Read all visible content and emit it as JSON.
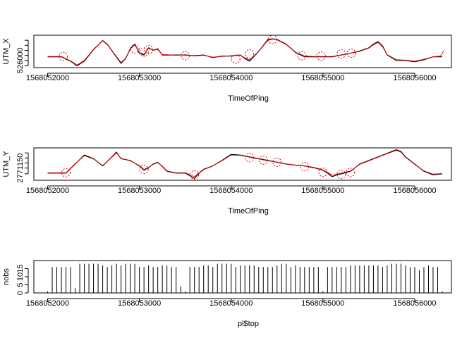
{
  "page": {
    "background": "#ffffff"
  },
  "chart_data": [
    {
      "type": "line",
      "title": "",
      "xlabel": "TimeOfPing",
      "ylabel": "UTM_X",
      "xlim": [
        1568051850,
        1568056400
      ],
      "ylim": [
        1.0,
        10.0
      ],
      "xticks": [
        1568052000,
        1568053000,
        1568054000,
        1568055000,
        1568056000
      ],
      "yticks_labeled": [
        {
          "value": 3.0,
          "label": "526000"
        }
      ],
      "yticks_unlabeled": [
        1.5,
        4.4,
        5.8,
        7.2,
        8.6
      ],
      "grid": false,
      "legend": "none",
      "series": [
        {
          "style": "line",
          "color": "#000000",
          "x": [
            1568052000,
            1568052150,
            1568052250,
            1568052320,
            1568052400,
            1568052500,
            1568052600,
            1568052650,
            1568052720,
            1568052800,
            1568052850,
            1568052900,
            1568052950,
            1568053000,
            1568053050,
            1568053100,
            1568053150,
            1568053200,
            1568053250,
            1568053300,
            1568053400,
            1568053500,
            1568053600,
            1568053700,
            1568053800,
            1568053900,
            1568054000,
            1568054100,
            1568054150,
            1568054200,
            1568054300,
            1568054400,
            1568054450,
            1568054500,
            1568054600,
            1568054700,
            1568054800,
            1568054900,
            1568055000,
            1568055100,
            1568055200,
            1568055300,
            1568055400,
            1568055500,
            1568055550,
            1568055600,
            1568055650,
            1568055700,
            1568055800,
            1568055900,
            1568056000,
            1568056100,
            1568056200,
            1568056300
          ],
          "y": [
            4.0,
            4.0,
            2.8,
            1.5,
            2.8,
            6.0,
            8.5,
            7.5,
            5.0,
            2.2,
            3.5,
            6.2,
            7.5,
            5.0,
            4.5,
            6.5,
            5.8,
            6.2,
            4.5,
            4.5,
            4.5,
            4.5,
            4.3,
            4.5,
            3.8,
            4.2,
            4.2,
            4.5,
            3.5,
            2.8,
            5.5,
            8.8,
            9.0,
            8.8,
            7.5,
            5.2,
            4.0,
            4.0,
            4.0,
            4.0,
            4.5,
            5.0,
            5.6,
            6.5,
            7.5,
            8.2,
            7.0,
            4.5,
            3.0,
            3.0,
            2.6,
            3.2,
            4.0,
            4.0
          ]
        },
        {
          "style": "line",
          "color": "#e00000",
          "x": [
            1568052000,
            1568052150,
            1568052250,
            1568052320,
            1568052400,
            1568052500,
            1568052600,
            1568052650,
            1568052720,
            1568052800,
            1568052850,
            1568052900,
            1568052950,
            1568053000,
            1568053050,
            1568053100,
            1568053150,
            1568053200,
            1568053250,
            1568053300,
            1568053400,
            1568053500,
            1568053600,
            1568053700,
            1568053800,
            1568053900,
            1568054000,
            1568054100,
            1568054150,
            1568054200,
            1568054300,
            1568054400,
            1568054450,
            1568054500,
            1568054600,
            1568054700,
            1568054800,
            1568054900,
            1568055000,
            1568055100,
            1568055200,
            1568055300,
            1568055400,
            1568055500,
            1568055550,
            1568055600,
            1568055650,
            1568055700,
            1568055800,
            1568055900,
            1568056000,
            1568056100,
            1568056200,
            1568056280,
            1568056320
          ],
          "y": [
            4.1,
            4.1,
            2.9,
            1.7,
            3.0,
            6.1,
            8.4,
            7.4,
            5.1,
            2.4,
            3.6,
            6.1,
            7.3,
            5.2,
            4.7,
            6.3,
            5.9,
            6.0,
            4.6,
            4.6,
            4.4,
            4.6,
            4.2,
            4.4,
            3.9,
            4.1,
            4.3,
            4.4,
            3.7,
            3.1,
            5.5,
            8.6,
            8.9,
            8.7,
            7.4,
            5.3,
            4.2,
            4.1,
            4.1,
            4.1,
            4.5,
            5.0,
            5.5,
            6.4,
            7.3,
            8.0,
            6.8,
            4.6,
            3.2,
            3.1,
            2.8,
            3.3,
            4.0,
            4.2,
            5.8
          ]
        }
      ],
      "circles": [
        {
          "x": 1568052170,
          "y": 4.1
        },
        {
          "x": 1568052950,
          "y": 6.2
        },
        {
          "x": 1568053050,
          "y": 5.3
        },
        {
          "x": 1568053100,
          "y": 6.0
        },
        {
          "x": 1568053500,
          "y": 4.3
        },
        {
          "x": 1568054050,
          "y": 3.4
        },
        {
          "x": 1568054200,
          "y": 4.8
        },
        {
          "x": 1568054450,
          "y": 8.8
        },
        {
          "x": 1568054770,
          "y": 4.3
        },
        {
          "x": 1568054980,
          "y": 4.2
        },
        {
          "x": 1568055200,
          "y": 4.8
        },
        {
          "x": 1568055310,
          "y": 5.0
        }
      ]
    },
    {
      "type": "line",
      "title": "",
      "xlabel": "TimeOfPing",
      "ylabel": "UTM_Y",
      "xlim": [
        1568051850,
        1568056400
      ],
      "ylim": [
        1.0,
        10.0
      ],
      "xticks": [
        1568052000,
        1568053000,
        1568054000,
        1568055000,
        1568056000
      ],
      "yticks_labeled": [
        {
          "value": 4.4,
          "label": "2771150"
        }
      ],
      "yticks_unlabeled": [
        2.8,
        5.8,
        7.2,
        8.6
      ],
      "grid": false,
      "legend": "none",
      "series": [
        {
          "style": "line",
          "color": "#000000",
          "x": [
            1568052000,
            1568052100,
            1568052200,
            1568052300,
            1568052400,
            1568052500,
            1568052600,
            1568052700,
            1568052750,
            1568052800,
            1568052900,
            1568053000,
            1568053050,
            1568053100,
            1568053150,
            1568053200,
            1568053250,
            1568053300,
            1568053400,
            1568053500,
            1568053600,
            1568053650,
            1568053700,
            1568053800,
            1568053900,
            1568054000,
            1568054100,
            1568054200,
            1568054300,
            1568054400,
            1568054500,
            1568054600,
            1568054700,
            1568054800,
            1568054900,
            1568055000,
            1568055050,
            1568055100,
            1568055150,
            1568055200,
            1568055300,
            1568055400,
            1568055500,
            1568055600,
            1568055700,
            1568055800,
            1568055850,
            1568055900,
            1568056000,
            1568056100,
            1568056200,
            1568056300
          ],
          "y": [
            3.0,
            3.0,
            3.0,
            5.5,
            8.0,
            7.0,
            5.0,
            7.5,
            8.8,
            7.0,
            6.5,
            5.0,
            3.8,
            4.5,
            5.5,
            6.0,
            4.8,
            3.5,
            3.0,
            3.0,
            1.5,
            3.0,
            4.0,
            5.0,
            6.5,
            8.2,
            8.0,
            7.5,
            7.0,
            6.5,
            6.0,
            5.5,
            5.2,
            5.0,
            4.5,
            3.8,
            3.0,
            2.0,
            2.5,
            2.8,
            3.5,
            5.5,
            6.5,
            7.5,
            8.5,
            9.5,
            9.0,
            7.5,
            5.5,
            3.5,
            2.5,
            2.8
          ]
        },
        {
          "style": "line",
          "color": "#e00000",
          "x": [
            1568052000,
            1568052100,
            1568052200,
            1568052300,
            1568052400,
            1568052500,
            1568052600,
            1568052700,
            1568052750,
            1568052800,
            1568052900,
            1568053000,
            1568053050,
            1568053100,
            1568053150,
            1568053200,
            1568053250,
            1568053300,
            1568053400,
            1568053500,
            1568053600,
            1568053650,
            1568053700,
            1568053800,
            1568053900,
            1568054000,
            1568054100,
            1568054200,
            1568054300,
            1568054400,
            1568054500,
            1568054600,
            1568054700,
            1568054800,
            1568054900,
            1568055000,
            1568055050,
            1568055100,
            1568055150,
            1568055200,
            1568055300,
            1568055400,
            1568055500,
            1568055600,
            1568055700,
            1568055800,
            1568055850,
            1568055900,
            1568056000,
            1568056100,
            1568056200,
            1568056300
          ],
          "y": [
            3.1,
            3.1,
            3.1,
            5.6,
            7.8,
            6.9,
            5.1,
            7.4,
            8.6,
            7.1,
            6.4,
            5.1,
            4.0,
            4.6,
            5.4,
            5.9,
            4.9,
            3.6,
            3.1,
            3.1,
            2.0,
            3.1,
            4.1,
            5.0,
            6.4,
            8.0,
            7.9,
            7.4,
            6.9,
            6.4,
            6.0,
            5.5,
            5.2,
            5.0,
            4.6,
            3.9,
            3.2,
            2.4,
            2.7,
            3.0,
            3.6,
            5.4,
            6.4,
            7.4,
            8.4,
            9.3,
            8.8,
            7.4,
            5.4,
            3.6,
            2.7,
            2.9
          ]
        }
      ],
      "circles": [
        {
          "x": 1568052200,
          "y": 3.1
        },
        {
          "x": 1568053050,
          "y": 4.0
        },
        {
          "x": 1568053600,
          "y": 2.5
        },
        {
          "x": 1568054200,
          "y": 7.3
        },
        {
          "x": 1568054350,
          "y": 6.6
        },
        {
          "x": 1568054500,
          "y": 6.0
        },
        {
          "x": 1568054800,
          "y": 4.8
        },
        {
          "x": 1568055000,
          "y": 3.2
        },
        {
          "x": 1568055200,
          "y": 2.6
        },
        {
          "x": 1568055300,
          "y": 3.2
        }
      ]
    },
    {
      "type": "bar",
      "title": "",
      "xlabel": "pl$top",
      "ylabel": "nobs",
      "xlim": [
        1568051850,
        1568056400
      ],
      "ylim": [
        0,
        20
      ],
      "xticks": [
        1568052000,
        1568053000,
        1568054000,
        1568055000,
        1568056000
      ],
      "yticks": [
        0,
        5,
        10,
        15
      ],
      "grid": false,
      "legend": "none",
      "series": [
        {
          "color": "#000000",
          "x": [
            1568052000,
            1568052050,
            1568052100,
            1568052150,
            1568052200,
            1568052250,
            1568052300,
            1568052350,
            1568052400,
            1568052450,
            1568052500,
            1568052550,
            1568052600,
            1568052650,
            1568052700,
            1568052750,
            1568052800,
            1568052850,
            1568052900,
            1568052950,
            1568053000,
            1568053050,
            1568053100,
            1568053150,
            1568053200,
            1568053250,
            1568053300,
            1568053350,
            1568053400,
            1568053450,
            1568053500,
            1568053550,
            1568053600,
            1568053650,
            1568053700,
            1568053750,
            1568053800,
            1568053850,
            1568053900,
            1568053950,
            1568054000,
            1568054050,
            1568054100,
            1568054150,
            1568054200,
            1568054250,
            1568054300,
            1568054350,
            1568054400,
            1568054450,
            1568054500,
            1568054550,
            1568054600,
            1568054650,
            1568054700,
            1568054750,
            1568054800,
            1568054850,
            1568054900,
            1568054950,
            1568055000,
            1568055050,
            1568055100,
            1568055150,
            1568055200,
            1568055250,
            1568055300,
            1568055350,
            1568055400,
            1568055450,
            1568055500,
            1568055550,
            1568055600,
            1568055650,
            1568055700,
            1568055750,
            1568055800,
            1568055850,
            1568055900,
            1568055950,
            1568056000,
            1568056050,
            1568056100,
            1568056150,
            1568056200,
            1568056250,
            1568056300
          ],
          "values": [
            1,
            16,
            16,
            16,
            16,
            16,
            3,
            18,
            18,
            18,
            18,
            18,
            17,
            16,
            17,
            18,
            17,
            18,
            18,
            18,
            16,
            16,
            17,
            16,
            16,
            17,
            17,
            16,
            16,
            4,
            1,
            16,
            16,
            16,
            17,
            17,
            16,
            18,
            18,
            18,
            18,
            16,
            17,
            17,
            17,
            17,
            16,
            16,
            16,
            16,
            17,
            18,
            18,
            16,
            17,
            16,
            16,
            16,
            16,
            16,
            1,
            16,
            16,
            16,
            16,
            16,
            17,
            17,
            17,
            17,
            17,
            17,
            17,
            16,
            17,
            18,
            18,
            18,
            17,
            16,
            16,
            14,
            16,
            17,
            16,
            16,
            1
          ]
        }
      ]
    }
  ]
}
